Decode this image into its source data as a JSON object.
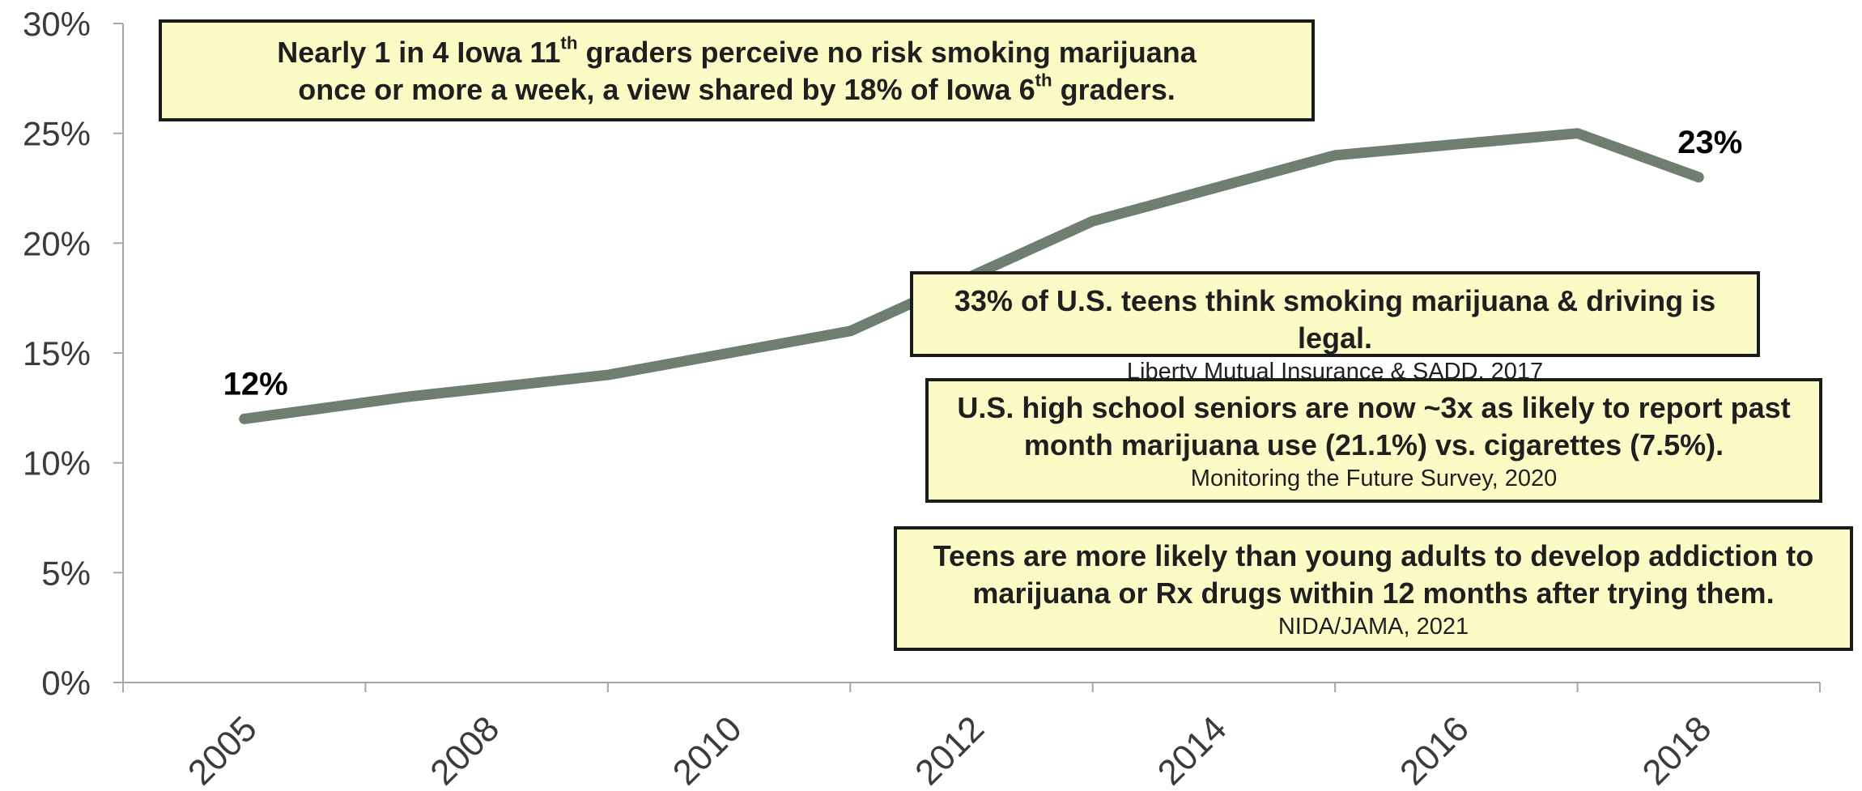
{
  "chart_data": {
    "type": "line",
    "categories": [
      "2005",
      "2008",
      "2010",
      "2012",
      "2014",
      "2016",
      "2018"
    ],
    "series": [
      {
        "x": [
          2005,
          2007,
          2009,
          2010,
          2011,
          2012,
          2013,
          2014,
          2015,
          2016,
          2017,
          2018
        ],
        "values": [
          12,
          13,
          14,
          15,
          16,
          18.5,
          21,
          22.5,
          24,
          24.5,
          25,
          23
        ]
      }
    ],
    "data_labels": [
      {
        "x": 2005,
        "text": "12%"
      },
      {
        "x": 2018,
        "text": "23%"
      }
    ],
    "yticks": [
      "0%",
      "5%",
      "10%",
      "15%",
      "20%",
      "25%",
      "30%"
    ],
    "ylim": [
      0,
      30
    ],
    "line_color": "#6e7f71",
    "grid": false,
    "legend": "none"
  },
  "callouts": {
    "title": {
      "line1_pre": "Nearly 1 in 4 Iowa 11",
      "line1_sup": "th",
      "line1_post": " graders perceive no risk smoking marijuana",
      "line2_pre": "once or more a week, a view shared by 18% of Iowa 6",
      "line2_sup": "th",
      "line2_post": " graders."
    },
    "driving": {
      "text": "33% of U.S. teens think smoking marijuana & driving is legal.",
      "source": "Liberty Mutual Insurance & SADD, 2017"
    },
    "seniors": {
      "line1": "U.S. high school seniors are now ~3x as likely to report past",
      "line2": "month marijuana use (21.1%) vs. cigarettes (7.5%).",
      "source": "Monitoring the Future Survey, 2020"
    },
    "teens": {
      "line1": "Teens are more likely than young adults to develop addiction to",
      "line2": "marijuana or Rx drugs within 12 months after trying them.",
      "source": "NIDA/JAMA, 2021"
    }
  },
  "colors": {
    "line": "#6e7f71",
    "callout_fill": "#fcfbc6",
    "callout_border": "#1b1b1b",
    "axis": "#a6a6a6"
  }
}
